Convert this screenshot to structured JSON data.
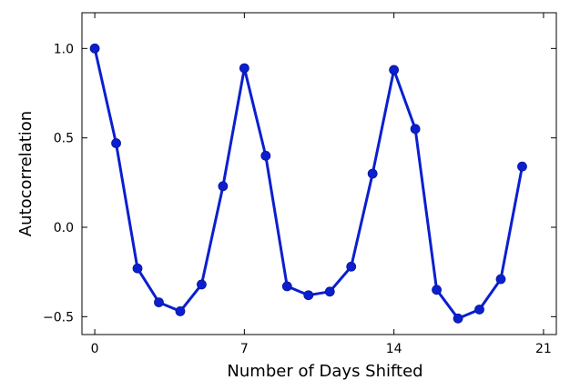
{
  "chart_data": {
    "type": "line",
    "xlabel": "Number of Days Shifted",
    "ylabel": "Autocorrelation",
    "xlim": [
      -0.6,
      21.6
    ],
    "ylim": [
      -0.6,
      1.2
    ],
    "xticks": [
      0,
      7,
      14,
      21
    ],
    "xtick_labels": [
      "0",
      "7",
      "14",
      "21"
    ],
    "yticks": [
      -0.5,
      0.0,
      0.5,
      1.0
    ],
    "ytick_labels": [
      "−0.5",
      "0.0",
      "0.5",
      "1.0"
    ],
    "grid": false,
    "series": [
      {
        "color": "#0a1fcf",
        "marker": "circle",
        "x": [
          0,
          1,
          2,
          3,
          4,
          5,
          6,
          7,
          8,
          9,
          10,
          11,
          12,
          13,
          14,
          15,
          16,
          17,
          18,
          19,
          20
        ],
        "values": [
          1.0,
          0.47,
          -0.23,
          -0.42,
          -0.47,
          -0.32,
          0.23,
          0.89,
          0.4,
          -0.33,
          -0.38,
          -0.36,
          -0.22,
          0.3,
          0.88,
          0.55,
          -0.35,
          -0.51,
          -0.46,
          -0.29,
          0.34
        ]
      }
    ]
  }
}
